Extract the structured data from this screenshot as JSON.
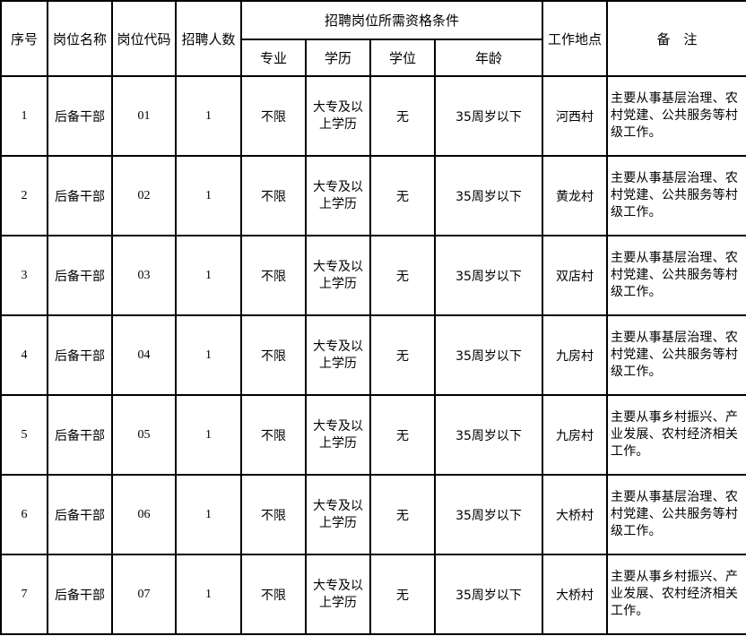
{
  "headers": {
    "index": "序号",
    "position_name": "岗位名称",
    "position_code": "岗位代码",
    "headcount": "招聘人数",
    "requirements": "招聘岗位所需资格条件",
    "major": "专业",
    "education": "学历",
    "degree": "学位",
    "age": "年龄",
    "location": "工作地点",
    "remarks": "备　注"
  },
  "rows": [
    {
      "index": "1",
      "name": "后备干部",
      "code": "01",
      "count": "1",
      "major": "不限",
      "education": "大专及以上学历",
      "degree": "无",
      "age": "35周岁以下",
      "location": "河西村",
      "remarks": "主要从事基层治理、农村党建、公共服务等村级工作。"
    },
    {
      "index": "2",
      "name": "后备干部",
      "code": "02",
      "count": "1",
      "major": "不限",
      "education": "大专及以上学历",
      "degree": "无",
      "age": "35周岁以下",
      "location": "黄龙村",
      "remarks": "主要从事基层治理、农村党建、公共服务等村级工作。"
    },
    {
      "index": "3",
      "name": "后备干部",
      "code": "03",
      "count": "1",
      "major": "不限",
      "education": "大专及以上学历",
      "degree": "无",
      "age": "35周岁以下",
      "location": "双店村",
      "remarks": "主要从事基层治理、农村党建、公共服务等村级工作。"
    },
    {
      "index": "4",
      "name": "后备干部",
      "code": "04",
      "count": "1",
      "major": "不限",
      "education": "大专及以上学历",
      "degree": "无",
      "age": "35周岁以下",
      "location": "九房村",
      "remarks": "主要从事基层治理、农村党建、公共服务等村级工作。"
    },
    {
      "index": "5",
      "name": "后备干部",
      "code": "05",
      "count": "1",
      "major": "不限",
      "education": "大专及以上学历",
      "degree": "无",
      "age": "35周岁以下",
      "location": "九房村",
      "remarks": "主要从事乡村振兴、产业发展、农村经济相关工作。"
    },
    {
      "index": "6",
      "name": "后备干部",
      "code": "06",
      "count": "1",
      "major": "不限",
      "education": "大专及以上学历",
      "degree": "无",
      "age": "35周岁以下",
      "location": "大桥村",
      "remarks": "主要从事基层治理、农村党建、公共服务等村级工作。"
    },
    {
      "index": "7",
      "name": "后备干部",
      "code": "07",
      "count": "1",
      "major": "不限",
      "education": "大专及以上学历",
      "degree": "无",
      "age": "35周岁以下",
      "location": "大桥村",
      "remarks": "主要从事乡村振兴、产业发展、农村经济相关工作。"
    }
  ]
}
